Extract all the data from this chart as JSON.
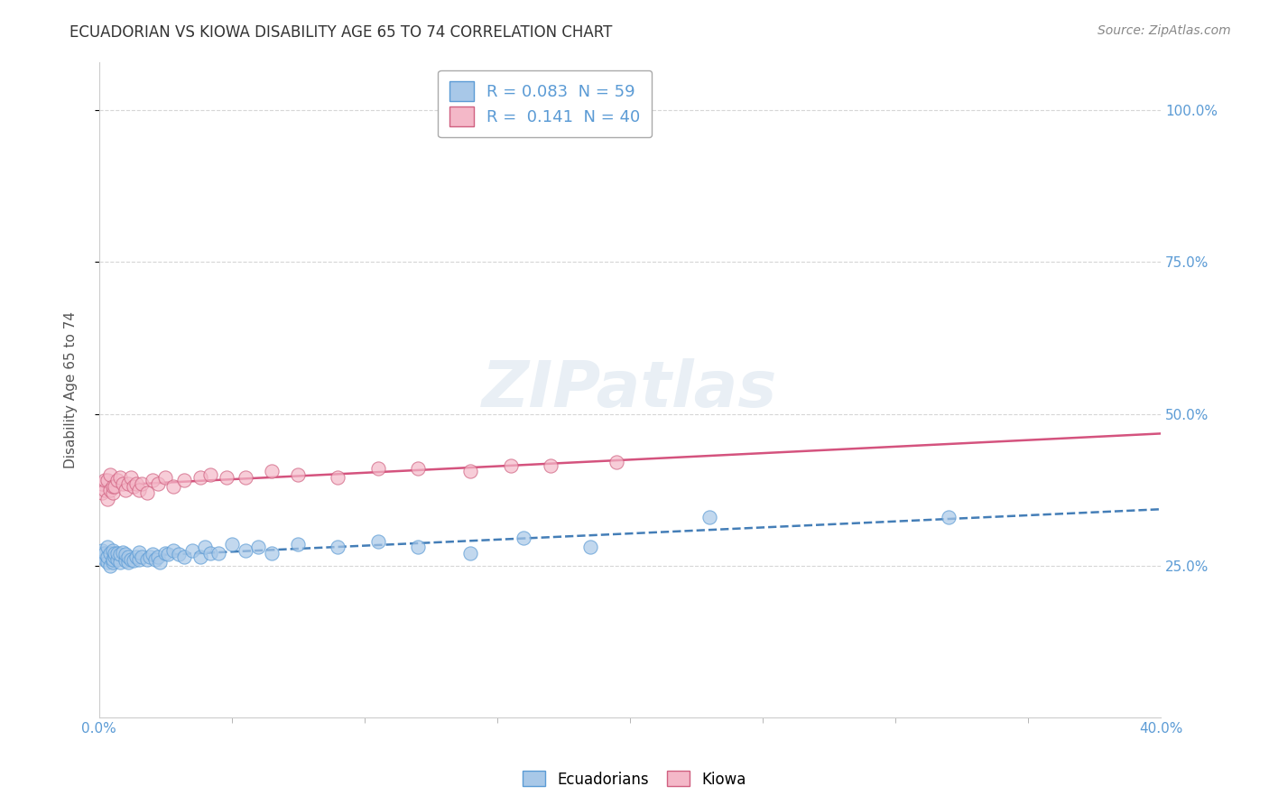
{
  "title": "ECUADORIAN VS KIOWA DISABILITY AGE 65 TO 74 CORRELATION CHART",
  "source": "Source: ZipAtlas.com",
  "ylabel": "Disability Age 65 to 74",
  "xmin": 0.0,
  "xmax": 0.4,
  "ymin": 0.0,
  "ymax": 1.08,
  "yticks": [
    0.25,
    0.5,
    0.75,
    1.0
  ],
  "ytick_labels": [
    "25.0%",
    "50.0%",
    "75.0%",
    "100.0%"
  ],
  "ecuadorians_R": 0.083,
  "ecuadorians_N": 59,
  "kiowa_R": 0.141,
  "kiowa_N": 40,
  "blue_fill": "#a8c8e8",
  "blue_edge": "#5b9bd5",
  "pink_fill": "#f4b8c8",
  "pink_edge": "#d06080",
  "blue_line_color": "#3070b0",
  "pink_line_color": "#d04070",
  "background_color": "#ffffff",
  "grid_color": "#cccccc",
  "ecuadorians_x": [
    0.001,
    0.001,
    0.001,
    0.002,
    0.002,
    0.003,
    0.003,
    0.003,
    0.004,
    0.004,
    0.005,
    0.005,
    0.005,
    0.006,
    0.006,
    0.007,
    0.007,
    0.008,
    0.008,
    0.009,
    0.01,
    0.01,
    0.011,
    0.011,
    0.012,
    0.013,
    0.014,
    0.015,
    0.015,
    0.016,
    0.018,
    0.019,
    0.02,
    0.021,
    0.022,
    0.023,
    0.025,
    0.026,
    0.028,
    0.03,
    0.032,
    0.035,
    0.038,
    0.04,
    0.042,
    0.045,
    0.05,
    0.055,
    0.06,
    0.065,
    0.075,
    0.09,
    0.105,
    0.12,
    0.14,
    0.16,
    0.185,
    0.23,
    0.32
  ],
  "ecuadorians_y": [
    0.265,
    0.27,
    0.275,
    0.26,
    0.27,
    0.255,
    0.265,
    0.28,
    0.25,
    0.27,
    0.255,
    0.26,
    0.275,
    0.265,
    0.27,
    0.26,
    0.27,
    0.255,
    0.268,
    0.272,
    0.258,
    0.268,
    0.255,
    0.265,
    0.26,
    0.258,
    0.265,
    0.26,
    0.272,
    0.265,
    0.26,
    0.265,
    0.268,
    0.26,
    0.265,
    0.255,
    0.27,
    0.268,
    0.275,
    0.268,
    0.265,
    0.275,
    0.265,
    0.28,
    0.27,
    0.27,
    0.285,
    0.275,
    0.28,
    0.27,
    0.285,
    0.28,
    0.29,
    0.28,
    0.27,
    0.295,
    0.28,
    0.33,
    0.33
  ],
  "kiowa_x": [
    0.001,
    0.001,
    0.002,
    0.002,
    0.003,
    0.003,
    0.004,
    0.004,
    0.005,
    0.005,
    0.006,
    0.007,
    0.008,
    0.009,
    0.01,
    0.011,
    0.012,
    0.013,
    0.014,
    0.015,
    0.016,
    0.018,
    0.02,
    0.022,
    0.025,
    0.028,
    0.032,
    0.038,
    0.042,
    0.048,
    0.055,
    0.065,
    0.075,
    0.09,
    0.105,
    0.12,
    0.14,
    0.155,
    0.17,
    0.195
  ],
  "kiowa_y": [
    0.37,
    0.385,
    0.375,
    0.39,
    0.36,
    0.39,
    0.375,
    0.4,
    0.37,
    0.38,
    0.38,
    0.39,
    0.395,
    0.385,
    0.375,
    0.385,
    0.395,
    0.38,
    0.385,
    0.375,
    0.385,
    0.37,
    0.39,
    0.385,
    0.395,
    0.38,
    0.39,
    0.395,
    0.4,
    0.395,
    0.395,
    0.405,
    0.4,
    0.395,
    0.41,
    0.41,
    0.405,
    0.415,
    0.415,
    0.42
  ]
}
